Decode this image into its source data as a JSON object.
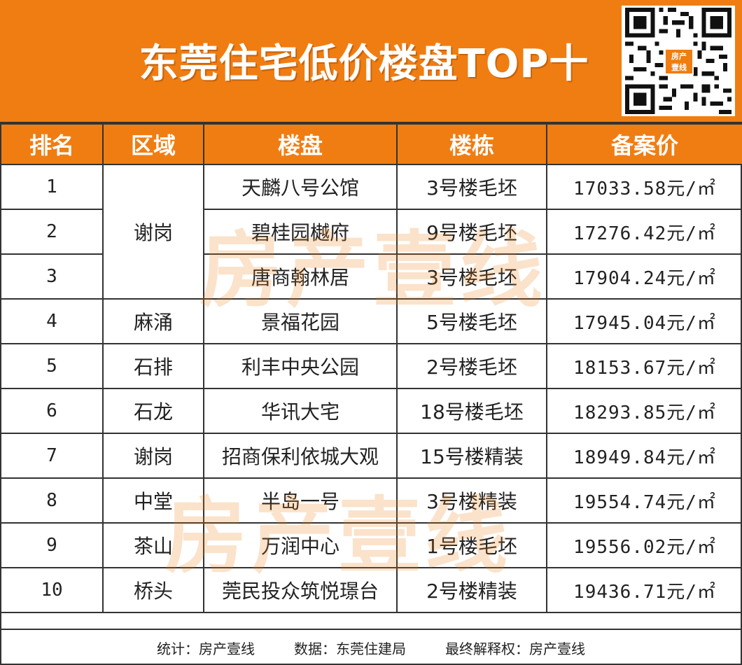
{
  "title": "东莞住宅低价楼盘TOP十",
  "qr_badge": {
    "line1": "房产",
    "line2": "壹线"
  },
  "table": {
    "headers": [
      "排名",
      "区域",
      "楼盘",
      "楼栋",
      "备案价"
    ],
    "rows": [
      {
        "rank": "1",
        "area": "谢岗",
        "project": "天麟八号公馆",
        "building": "3号楼毛坯",
        "price": "17033.58元/㎡"
      },
      {
        "rank": "2",
        "area": "",
        "project": "碧桂园樾府",
        "building": "9号楼毛坯",
        "price": "17276.42元/㎡"
      },
      {
        "rank": "3",
        "area": "",
        "project": "唐商翰林居",
        "building": "3号楼毛坯",
        "price": "17904.24元/㎡"
      },
      {
        "rank": "4",
        "area": "麻涌",
        "project": "景福花园",
        "building": "5号楼毛坯",
        "price": "17945.04元/㎡"
      },
      {
        "rank": "5",
        "area": "石排",
        "project": "利丰中央公园",
        "building": "2号楼毛坯",
        "price": "18153.67元/㎡"
      },
      {
        "rank": "6",
        "area": "石龙",
        "project": "华讯大宅",
        "building": "18号楼毛坯",
        "price": "18293.85元/㎡"
      },
      {
        "rank": "7",
        "area": "谢岗",
        "project": "招商保利依城大观",
        "building": "15号楼精装",
        "price": "18949.84元/㎡"
      },
      {
        "rank": "8",
        "area": "中堂",
        "project": "半岛一号",
        "building": "3号楼精装",
        "price": "19554.74元/㎡"
      },
      {
        "rank": "9",
        "area": "茶山",
        "project": "万润中心",
        "building": "1号楼毛坯",
        "price": "19556.02元/㎡"
      },
      {
        "rank": "10",
        "area": "桥头",
        "project": "莞民投众筑悦璟台",
        "building": "2号楼精装",
        "price": "19436.71元/㎡"
      }
    ]
  },
  "footer": {
    "stats": "统计：房产壹线",
    "data_source": "数据：东莞住建局",
    "rights": "最终解释权：房产壹线"
  },
  "watermark": "房产壹线",
  "colors": {
    "accent": "#f07d12",
    "border": "#333333"
  }
}
